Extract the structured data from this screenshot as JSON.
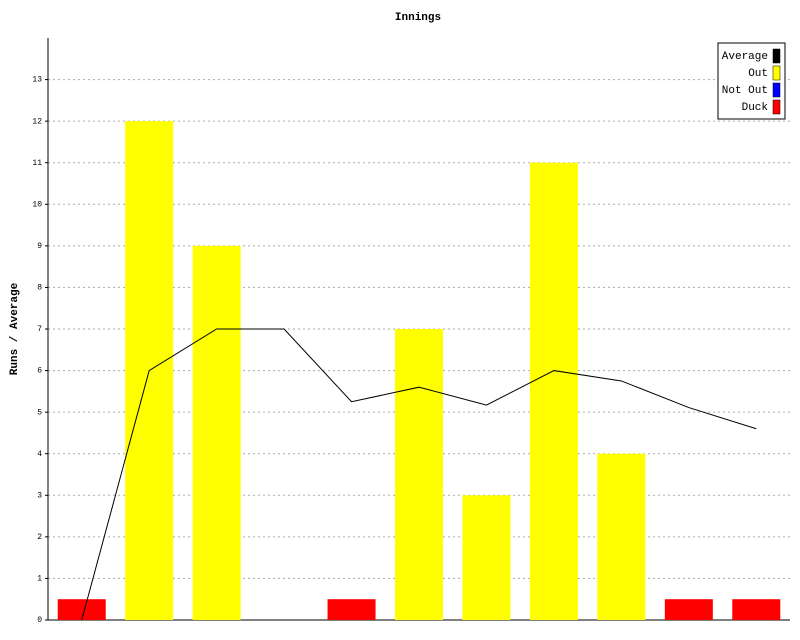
{
  "chart_data": {
    "type": "bar",
    "title": "Innings",
    "y_label": "Runs / Average",
    "categories": [
      null,
      null,
      null,
      null,
      null,
      null,
      null,
      null,
      null,
      null,
      null
    ],
    "series": [
      {
        "name": "Average",
        "color": "#000000",
        "type": "line",
        "values": [
          0,
          6,
          7,
          7,
          5.25,
          5.6,
          5.17,
          6,
          5.75,
          5.11,
          4.6
        ]
      },
      {
        "name": "Out",
        "color": "#ffff00",
        "type": "bar",
        "values": [
          null,
          12,
          9,
          null,
          null,
          7,
          3,
          11,
          4,
          null,
          null
        ]
      },
      {
        "name": "Not Out",
        "color": "#0000ff",
        "type": "bar",
        "values": [
          null,
          null,
          null,
          0,
          null,
          null,
          null,
          null,
          null,
          null,
          null
        ]
      },
      {
        "name": "Duck",
        "color": "#ff0000",
        "type": "bar",
        "values": [
          0.5,
          null,
          null,
          null,
          0.5,
          null,
          null,
          null,
          null,
          0.5,
          0.5
        ]
      }
    ],
    "ylim": [
      0,
      14
    ],
    "yticks": [
      0,
      1,
      2,
      3,
      4,
      5,
      6,
      7,
      8,
      9,
      10,
      11,
      12,
      13
    ],
    "grid": true,
    "legend": "top-right"
  }
}
